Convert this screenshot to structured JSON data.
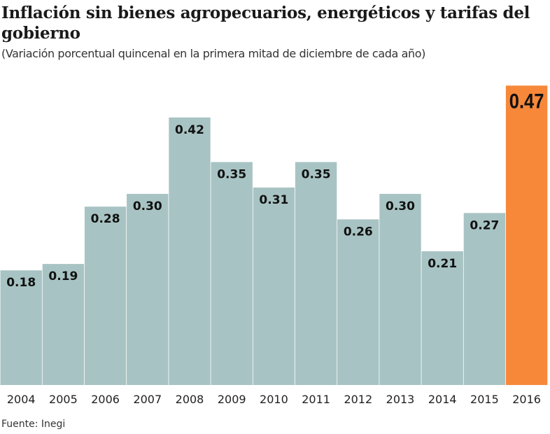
{
  "chart_data": {
    "type": "bar",
    "title": "Inflación sin bienes agropecuarios, energéticos y tarifas del gobierno",
    "subtitle": "(Variación porcentual quincenal en la primera mitad de diciembre de cada año)",
    "categories": [
      "2004",
      "2005",
      "2006",
      "2007",
      "2008",
      "2009",
      "2010",
      "2011",
      "2012",
      "2013",
      "2014",
      "2015",
      "2016"
    ],
    "values": [
      0.18,
      0.19,
      0.28,
      0.3,
      0.42,
      0.35,
      0.31,
      0.35,
      0.26,
      0.3,
      0.21,
      0.27,
      0.47
    ],
    "labels": [
      "0.18",
      "0.19",
      "0.28",
      "0.30",
      "0.42",
      "0.35",
      "0.31",
      "0.35",
      "0.26",
      "0.30",
      "0.21",
      "0.27",
      "0.47"
    ],
    "ylim": [
      0,
      0.5
    ],
    "grid": false,
    "colors": {
      "default": "#a8c3c3",
      "highlight": "#f7883a"
    },
    "highlight_index": 12,
    "source": "Fuente: Inegi"
  }
}
